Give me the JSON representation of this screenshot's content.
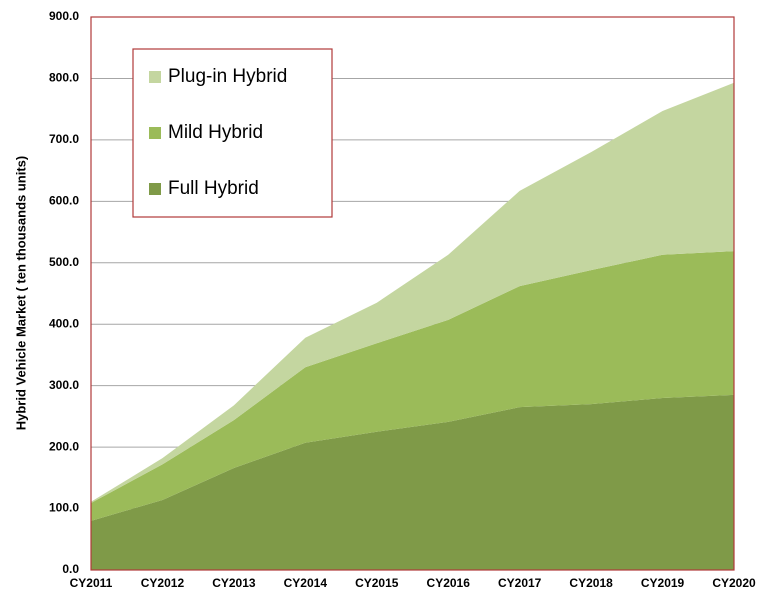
{
  "chart_data": {
    "type": "stacked-area",
    "y_label": "Hybrid Vehicle Market ( ten thousands units)",
    "categories": [
      "CY2011",
      "CY2012",
      "CY2013",
      "CY2014",
      "CY2015",
      "CY2016",
      "CY2017",
      "CY2018",
      "CY2019",
      "CY2020"
    ],
    "series": [
      {
        "name": "Full Hybrid",
        "color": "#7f9a48",
        "values": [
          80,
          114,
          166,
          207,
          225,
          241,
          265,
          270,
          280,
          285
        ]
      },
      {
        "name": "Mild Hybrid",
        "color": "#9bbb59",
        "values": [
          29,
          58,
          78,
          123,
          144,
          166,
          197,
          218,
          233,
          234
        ]
      },
      {
        "name": "Plug-in Hybrid",
        "color": "#c4d6a0",
        "values": [
          2,
          10,
          24,
          48,
          66,
          106,
          155,
          192,
          234,
          274
        ]
      }
    ],
    "ylim": [
      0,
      900
    ],
    "yticks": [
      {
        "value": 0,
        "label": "0.0"
      },
      {
        "value": 100,
        "label": "100.0"
      },
      {
        "value": 200,
        "label": "200.0"
      },
      {
        "value": 300,
        "label": "300.0"
      },
      {
        "value": 400,
        "label": "400.0"
      },
      {
        "value": 500,
        "label": "500.0"
      },
      {
        "value": 600,
        "label": "600.0"
      },
      {
        "value": 700,
        "label": "700.0"
      },
      {
        "value": 800,
        "label": "800.0"
      },
      {
        "value": 900,
        "label": "900.0"
      }
    ],
    "grid": true,
    "legend": "upper left"
  }
}
